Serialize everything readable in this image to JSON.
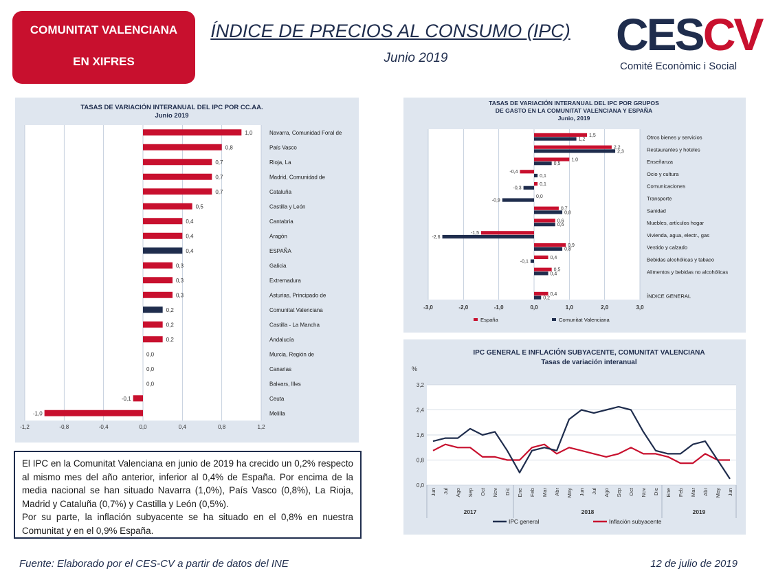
{
  "header": {
    "badge_line1": "COMUNITAT VALENCIANA",
    "badge_line2": "EN XIFRES",
    "title": "ÍNDICE DE PRECIOS AL CONSUMO (IPC)",
    "subtitle": "Junio 2019",
    "logo_ces": "CES",
    "logo_cv": "CV",
    "logo_tagline": "Comité Econòmic i Social"
  },
  "colors": {
    "red": "#c8102e",
    "navy": "#1f2d4d",
    "panel": "#dfe6ef"
  },
  "chart_data": [
    {
      "type": "bar",
      "orientation": "horizontal",
      "title": "TASAS DE VARIACIÓN INTERANUAL DEL IPC POR CC.AA.",
      "subtitle": "Junio 2019",
      "categories": [
        "Navarra, Comunidad Foral de",
        "País Vasco",
        "Rioja, La",
        "Madrid, Comunidad de",
        "Cataluña",
        "Castilla y León",
        "Cantabria",
        "Aragón",
        "ESPAÑA",
        "Galicia",
        "Extremadura",
        "Asturias, Principado de",
        "Comunitat Valenciana",
        "Castilla - La Mancha",
        "Andalucía",
        "Murcia, Región de",
        "Canarias",
        "Balears, Illes",
        "Ceuta",
        "Melilla"
      ],
      "values": [
        1.0,
        0.8,
        0.7,
        0.7,
        0.7,
        0.5,
        0.4,
        0.4,
        0.4,
        0.3,
        0.3,
        0.3,
        0.2,
        0.2,
        0.2,
        0.0,
        0.0,
        0.0,
        -0.1,
        -1.0
      ],
      "value_labels": [
        "1,0",
        "0,8",
        "0,7",
        "0,7",
        "0,7",
        "0,5",
        "0,4",
        "0,4",
        "0,4",
        "0,3",
        "0,3",
        "0,3",
        "0,2",
        "0,2",
        "0,2",
        "0,0",
        "0,0",
        "0,0",
        "-0,1",
        "-1,0"
      ],
      "highlight": [
        "ESPAÑA",
        "Comunitat Valenciana"
      ],
      "xlim": [
        -1.2,
        1.2
      ],
      "xticks": [
        "-1,2",
        "-0,8",
        "-0,4",
        "0,0",
        "0,4",
        "0,8",
        "1,2"
      ],
      "grid": true
    },
    {
      "type": "bar",
      "orientation": "horizontal",
      "title_lines": [
        "TASAS DE VARIACIÓN INTERANUAL DEL IPC POR GRUPOS",
        "DE GASTO EN LA COMUNITAT VALENCIANA Y ESPAÑA",
        "Junio, 2019"
      ],
      "categories": [
        "Otros bienes y servicios",
        "Restaurantes y hoteles",
        "Enseñanza",
        "Ocio y cultura",
        "Comunicaciones",
        "Transporte",
        "Sanidad",
        "Muebles, artículos hogar",
        "Vivienda, agua, electr., gas",
        "Vestido y calzado",
        "Bebidas alcohólicas y tabaco",
        "Alimentos y bebidas no alcohólicas",
        "ÍNDICE GENERAL"
      ],
      "series": [
        {
          "name": "España",
          "color": "#c8102e",
          "values": [
            1.5,
            2.2,
            1.0,
            -0.4,
            0.1,
            0.0,
            0.7,
            0.6,
            -1.5,
            0.9,
            0.4,
            0.5,
            0.4
          ],
          "labels": [
            "1,5",
            "2,2",
            "1,0",
            "-0,4",
            "0,1",
            "0,0",
            "0,7",
            "0,6",
            "-1,5",
            "0,9",
            "0,4",
            "0,5",
            "0,4"
          ]
        },
        {
          "name": "Comunitat Valenciana",
          "color": "#1f2d4d",
          "values": [
            1.2,
            2.3,
            0.5,
            0.1,
            -0.3,
            -0.9,
            0.8,
            0.6,
            -2.6,
            0.8,
            -0.1,
            0.4,
            0.2
          ],
          "labels": [
            "1,2",
            "2,3",
            "0,5",
            "0,1",
            "-0,3",
            "-0,9",
            "0,8",
            "0,6",
            "-2,6",
            "0,8",
            "-0,1",
            "0,4",
            "0,2"
          ]
        }
      ],
      "xlim": [
        -3.0,
        3.0
      ],
      "xticks": [
        "-3,0",
        "-2,0",
        "-1,0",
        "0,0",
        "1,0",
        "2,0",
        "3,0"
      ],
      "legend": [
        "España",
        "Comunitat Valenciana"
      ],
      "legend_position": "bottom"
    },
    {
      "type": "line",
      "title": "IPC GENERAL E INFLACIÓN SUBYACENTE, COMUNITAT VALENCIANA",
      "subtitle": "Tasas de variación interanual",
      "ylabel": "%",
      "x": [
        "Jun",
        "Jul",
        "Ago",
        "Sep",
        "Oct",
        "Nov",
        "Dic",
        "Ene",
        "Feb",
        "Mar",
        "Abr",
        "May",
        "Jun",
        "Jul",
        "Ago",
        "Sep",
        "Oct",
        "Nov",
        "Dic",
        "Ene",
        "Feb",
        "Mar",
        "Abr",
        "May",
        "Jun"
      ],
      "year_groups": [
        {
          "label": "2017",
          "from": 0,
          "to": 6
        },
        {
          "label": "2018",
          "from": 7,
          "to": 18
        },
        {
          "label": "2019",
          "from": 19,
          "to": 24
        }
      ],
      "series": [
        {
          "name": "IPC general",
          "color": "#1f2d4d",
          "values": [
            1.4,
            1.5,
            1.5,
            1.8,
            1.6,
            1.7,
            1.1,
            0.4,
            1.1,
            1.2,
            1.1,
            2.1,
            2.4,
            2.3,
            2.4,
            2.5,
            2.4,
            1.7,
            1.1,
            1.0,
            1.0,
            1.3,
            1.4,
            0.8,
            0.2
          ]
        },
        {
          "name": "Inflación subyacente",
          "color": "#c8102e",
          "values": [
            1.1,
            1.3,
            1.2,
            1.2,
            0.9,
            0.9,
            0.8,
            0.8,
            1.2,
            1.3,
            1.0,
            1.2,
            1.1,
            1.0,
            0.9,
            1.0,
            1.2,
            1.0,
            1.0,
            0.9,
            0.7,
            0.7,
            1.0,
            0.8,
            0.8
          ]
        }
      ],
      "ylim": [
        0.0,
        3.2
      ],
      "yticks": [
        "0,0",
        "0,8",
        "1,6",
        "2,4",
        "3,2"
      ],
      "legend_position": "bottom"
    }
  ],
  "commentary": {
    "p1": "El IPC en la Comunitat Valenciana en junio de 2019 ha crecido un 0,2% respecto al mismo mes del año anterior, inferior al 0,4% de España. Por encima de la media nacional se han situado Navarra (1,0%), País Vasco (0,8%), La Rioja, Madrid y Cataluña (0,7%) y Castilla y León (0,5%).",
    "p2": "Por su parte, la inflación subyacente se ha situado en el 0,8% en nuestra Comunitat y en el 0,9% España."
  },
  "footer": {
    "source": "Fuente: Elaborado por el CES-CV a partir de datos del INE",
    "date": "12 de julio de 2019"
  }
}
